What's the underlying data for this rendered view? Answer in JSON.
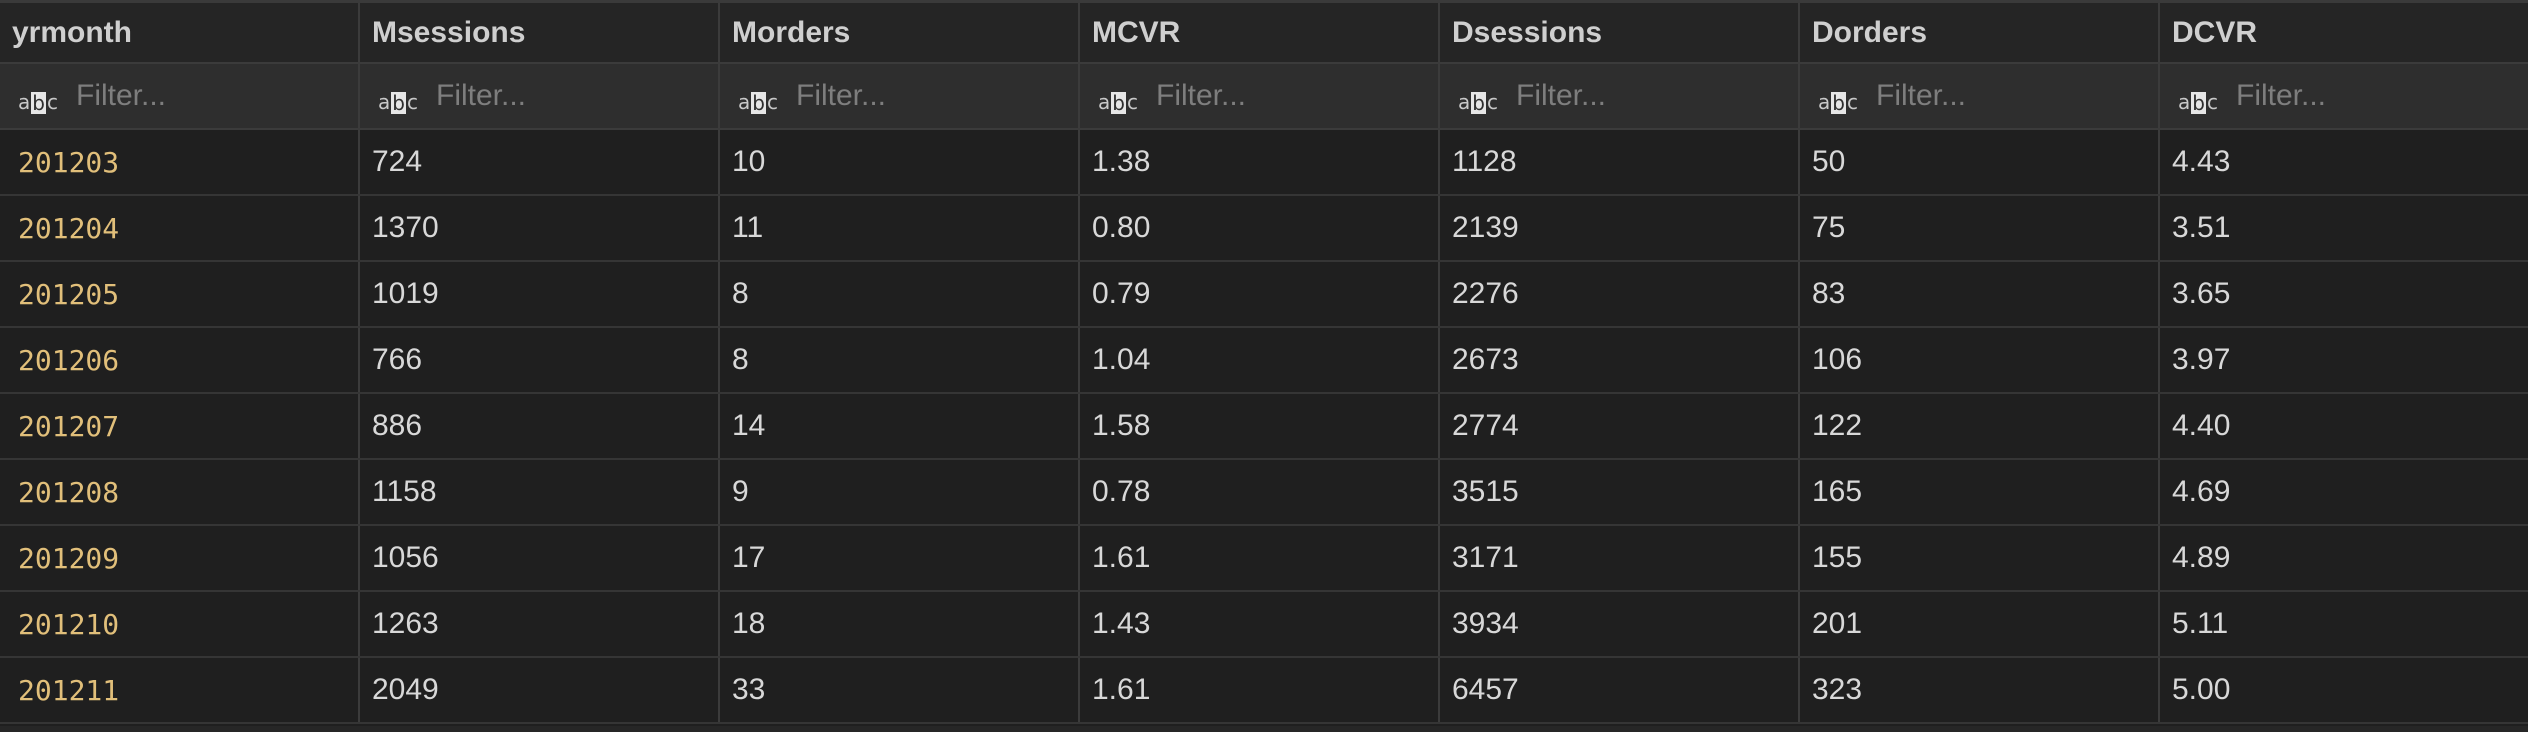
{
  "columns": [
    "yrmonth",
    "Msessions",
    "Morders",
    "MCVR",
    "Dsessions",
    "Dorders",
    "DCVR"
  ],
  "filter": {
    "placeholder": "Filter...",
    "icon": "text-type-icon"
  },
  "colors": {
    "background": "#1f1f1f",
    "header_background": "#252525",
    "filter_background": "#2e2e2e",
    "key_column_text": "#e1bf7a",
    "cell_text": "#d8d8d8"
  },
  "rows": [
    [
      "201203",
      "724",
      "10",
      "1.38",
      "1128",
      "50",
      "4.43"
    ],
    [
      "201204",
      "1370",
      "11",
      "0.80",
      "2139",
      "75",
      "3.51"
    ],
    [
      "201205",
      "1019",
      "8",
      "0.79",
      "2276",
      "83",
      "3.65"
    ],
    [
      "201206",
      "766",
      "8",
      "1.04",
      "2673",
      "106",
      "3.97"
    ],
    [
      "201207",
      "886",
      "14",
      "1.58",
      "2774",
      "122",
      "4.40"
    ],
    [
      "201208",
      "1158",
      "9",
      "0.78",
      "3515",
      "165",
      "4.69"
    ],
    [
      "201209",
      "1056",
      "17",
      "1.61",
      "3171",
      "155",
      "4.89"
    ],
    [
      "201210",
      "1263",
      "18",
      "1.43",
      "3934",
      "201",
      "5.11"
    ],
    [
      "201211",
      "2049",
      "33",
      "1.61",
      "6457",
      "323",
      "5.00"
    ]
  ]
}
